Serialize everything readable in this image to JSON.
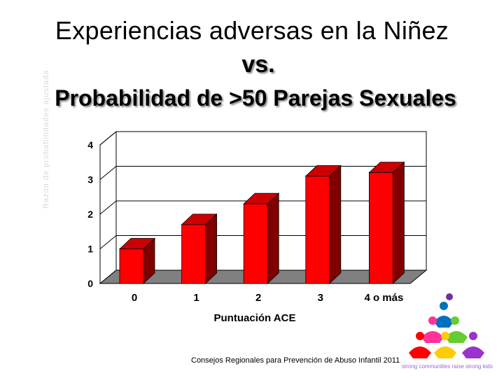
{
  "slide": {
    "title_line1": "Experiencias adversas en la Niñez",
    "title_line2": "vs.",
    "title_line3": "Probabilidad de >50 Parejas Sexuales",
    "footer": "Consejos Regionales para Prevención de Abuso Infantil 2011",
    "logo_tagline": "strong communities raise strong kids"
  },
  "colors": {
    "bar_front": "#ff0000",
    "bar_side": "#800000",
    "bar_top": "#cc0000",
    "floor": "#808080",
    "text": "#000000"
  },
  "chart_data": {
    "type": "bar",
    "title": "",
    "xlabel": "Puntuación ACE",
    "ylabel": "Razón de probabilidades ajustada",
    "categories": [
      "0",
      "1",
      "2",
      "3",
      "4 o más"
    ],
    "values": [
      1.0,
      1.7,
      2.3,
      3.1,
      3.2
    ],
    "ylim": [
      0,
      4
    ],
    "yticks": [
      "0",
      "1",
      "2",
      "3",
      "4"
    ],
    "grid": true,
    "legend": "none"
  }
}
